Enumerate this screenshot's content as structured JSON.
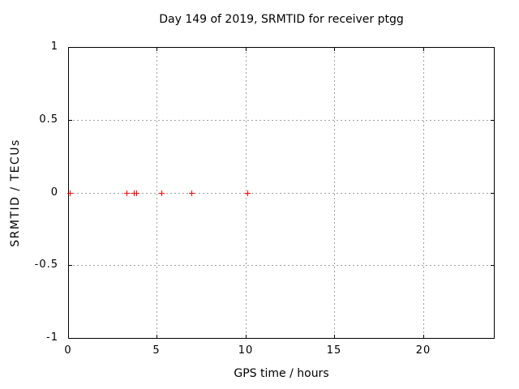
{
  "chart_data": {
    "type": "scatter",
    "title": "Day 149 of 2019, SRMTID for receiver ptgg",
    "xlabel": "GPS time / hours",
    "ylabel": "SRMTID / TECUs",
    "xlim": [
      0,
      24
    ],
    "ylim": [
      -1,
      1
    ],
    "xticks": {
      "values": [
        0,
        5,
        10,
        15,
        20
      ],
      "labels": [
        "0",
        "5",
        "10",
        "15",
        "20"
      ]
    },
    "yticks": {
      "values": [
        1,
        0.5,
        0,
        -0.5,
        -1
      ],
      "labels": [
        "1",
        "0.5",
        "0",
        "-0.5",
        "-1"
      ]
    },
    "grid": true,
    "grid_style": "dotted",
    "legend_position": "none",
    "series": [
      {
        "name": "SRMTID",
        "marker": "plus",
        "color": "#ff0000",
        "points": [
          {
            "x": 0.09,
            "y": 0
          },
          {
            "x": 3.29,
            "y": 0
          },
          {
            "x": 3.71,
            "y": 0
          },
          {
            "x": 3.83,
            "y": 0
          },
          {
            "x": 5.26,
            "y": 0
          },
          {
            "x": 6.96,
            "y": 0
          },
          {
            "x": 10.09,
            "y": 0
          }
        ]
      }
    ],
    "colors": {
      "background": "#ffffff",
      "axis": "#000000",
      "grid": "#a0a0a0",
      "marker": "#ff0000",
      "text": "#000000"
    }
  }
}
